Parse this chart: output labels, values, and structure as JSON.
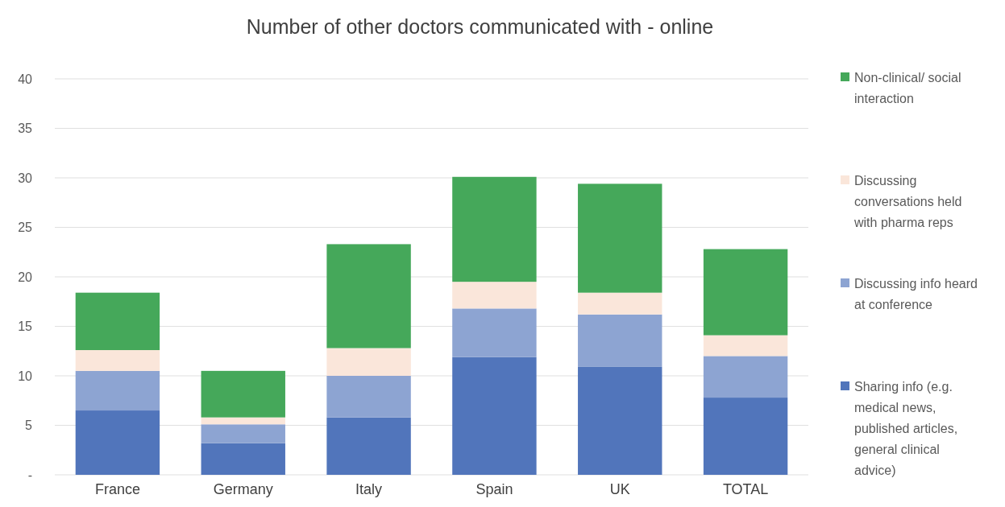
{
  "chart_data": {
    "type": "bar",
    "title": "Number of other doctors communicated with - online",
    "stacked": true,
    "categories": [
      "France",
      "Germany",
      "Italy",
      "Spain",
      "UK",
      "TOTAL"
    ],
    "series": [
      {
        "name": "Sharing info (e.g. medical news, published articles, general clinical advice)",
        "color": "#5175bb",
        "values": [
          6.5,
          3.2,
          5.8,
          11.9,
          10.9,
          7.8
        ]
      },
      {
        "name": "Discussing info heard at conference",
        "color": "#8da4d2",
        "values": [
          4.0,
          1.9,
          4.2,
          4.9,
          5.3,
          4.2
        ]
      },
      {
        "name": "Discussing conversations held with pharma reps",
        "color": "#fae6da",
        "values": [
          2.1,
          0.7,
          2.8,
          2.7,
          2.2,
          2.1
        ]
      },
      {
        "name": "Non-clinical/ social interaction",
        "color": "#45a85a",
        "values": [
          5.8,
          4.7,
          10.5,
          10.6,
          11.0,
          8.7
        ]
      }
    ],
    "ylim": [
      0,
      40
    ],
    "yticks": [
      {
        "value": 0,
        "label": "-"
      },
      5,
      10,
      15,
      20,
      25,
      30,
      35,
      40
    ],
    "grid": "y",
    "legend": "right"
  }
}
